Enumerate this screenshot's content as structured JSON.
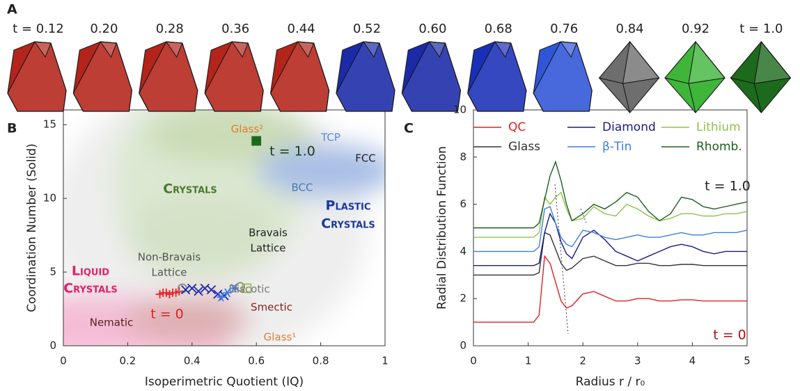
{
  "panel_a": {
    "panel": "A",
    "labels": [
      "t = 0.12",
      "0.20",
      "0.28",
      "0.36",
      "0.44",
      "0.52",
      "0.60",
      "0.68",
      "0.76",
      "0.84",
      "0.92",
      "t = 1.0"
    ],
    "colors": [
      "#b3241a",
      "#b3241a",
      "#b3241a",
      "#b3241a",
      "#b3241a",
      "#1a2aa8",
      "#1a2aa8",
      "#1a2fb8",
      "#2f55d8",
      "#6e6e6e",
      "#3fb53a",
      "#1c6a1c"
    ]
  },
  "chart_data": [
    {
      "type": "scatter",
      "panel": "B",
      "x_label": "Isoperimetric Quotient (IQ)",
      "y_label": "Coordination Number (Solid)",
      "xlim": [
        0,
        1
      ],
      "xticks": [
        0,
        0.2,
        0.4,
        0.6,
        0.8,
        1
      ],
      "ylim": [
        0,
        16
      ],
      "yticks": [
        0,
        5,
        10,
        15
      ],
      "series": [
        {
          "color": "#e82020",
          "marker": "plus",
          "x": [
            0.3,
            0.31,
            0.32,
            0.33,
            0.34,
            0.35,
            0.36
          ],
          "values": [
            3.5,
            3.6,
            3.6,
            3.5,
            3.6,
            3.6,
            3.7
          ]
        },
        {
          "color": "#888888",
          "marker": "circle",
          "x": [
            0.37,
            0.55
          ],
          "values": [
            3.9,
            4.0
          ]
        },
        {
          "color": "#1a2aa8",
          "marker": "x",
          "x": [
            0.38,
            0.4,
            0.42,
            0.44,
            0.46,
            0.48,
            0.5
          ],
          "values": [
            3.8,
            3.9,
            3.7,
            3.9,
            3.8,
            3.5,
            3.4
          ]
        },
        {
          "color": "#3f7ee0",
          "marker": "star",
          "x": [
            0.49,
            0.51,
            0.53
          ],
          "values": [
            3.3,
            3.6,
            3.9
          ]
        },
        {
          "color": "#8fc24a",
          "marker": "square",
          "x": [
            0.57
          ],
          "values": [
            3.9
          ]
        },
        {
          "color": "#1c6a1c",
          "marker": "square",
          "x": [
            0.6
          ],
          "values": [
            13.9
          ]
        }
      ],
      "annotations": [
        {
          "text": "Glass²",
          "color": "#e07b30"
        },
        {
          "text": "TCP",
          "color": "#5a8ad0"
        },
        {
          "text": "FCC",
          "color": "#222222"
        },
        {
          "text": "t = 1.0",
          "color": "#1a3a1a"
        },
        {
          "text": "Crystals",
          "color": "#4a7a30",
          "style": "smallcaps"
        },
        {
          "text": "BCC",
          "color": "#4a7ab0"
        },
        {
          "text": "Plastic",
          "color": "#1a3a9a",
          "style": "smallcaps"
        },
        {
          "text": "Crystals",
          "color": "#1a3a9a",
          "style": "smallcaps"
        },
        {
          "text": "Bravais",
          "color": "#222222"
        },
        {
          "text": "Lattice",
          "color": "#222222"
        },
        {
          "text": "Non-Bravais",
          "color": "#555555"
        },
        {
          "text": "Lattice",
          "color": "#555555"
        },
        {
          "text": "Liquid",
          "color": "#e0206a",
          "style": "smallcaps"
        },
        {
          "text": "Crystals",
          "color": "#e0206a",
          "style": "smallcaps"
        },
        {
          "text": "t = 0",
          "color": "#e02020"
        },
        {
          "text": "Discotic",
          "color": "#777777"
        },
        {
          "text": "Nematic",
          "color": "#5a2020"
        },
        {
          "text": "Smectic",
          "color": "#8a2020"
        },
        {
          "text": "Glass¹",
          "color": "#e07b30"
        }
      ]
    },
    {
      "type": "line",
      "panel": "C",
      "x_label": "Radius r / r₀",
      "y_label": "Radial Distribution Function",
      "xlim": [
        0,
        5
      ],
      "xticks": [
        0,
        1,
        2,
        3,
        4,
        5
      ],
      "ylim": [
        0,
        10
      ],
      "yticks": [
        0,
        2,
        4,
        6,
        8,
        10
      ],
      "x": [
        0,
        1,
        1.1,
        1.2,
        1.3,
        1.4,
        1.5,
        1.6,
        1.7,
        1.8,
        2.0,
        2.2,
        2.4,
        2.6,
        2.8,
        3.0,
        3.2,
        3.4,
        3.6,
        3.8,
        4.0,
        4.2,
        4.4,
        4.6,
        4.8,
        5.0
      ],
      "series": [
        {
          "name": "QC",
          "color": "#e02020",
          "values": [
            1.0,
            1.0,
            1.0,
            1.3,
            3.8,
            3.5,
            2.7,
            1.9,
            1.6,
            1.7,
            2.2,
            2.3,
            2.1,
            1.9,
            1.9,
            2.0,
            2.0,
            1.9,
            1.9,
            1.95,
            1.95,
            1.9,
            1.9,
            1.9,
            1.9,
            1.9
          ]
        },
        {
          "name": "Glass",
          "color": "#333333",
          "values": [
            3.0,
            3.0,
            3.0,
            3.1,
            4.8,
            4.7,
            4.1,
            3.5,
            3.2,
            3.3,
            3.7,
            3.8,
            3.6,
            3.4,
            3.4,
            3.5,
            3.5,
            3.4,
            3.4,
            3.45,
            3.45,
            3.4,
            3.4,
            3.4,
            3.4,
            3.4
          ]
        },
        {
          "name": "Diamond",
          "color": "#1a1a80",
          "values": [
            3.4,
            3.4,
            3.4,
            3.5,
            4.8,
            5.6,
            5.2,
            4.4,
            3.9,
            3.7,
            4.6,
            4.9,
            4.5,
            4.0,
            3.8,
            3.6,
            3.8,
            4.0,
            4.2,
            4.3,
            4.2,
            4.0,
            3.9,
            4.0,
            4.0,
            4.0
          ]
        },
        {
          "name": "β-Tin",
          "color": "#3c7de0",
          "values": [
            4.0,
            4.0,
            4.0,
            4.2,
            5.8,
            5.9,
            5.2,
            4.6,
            4.3,
            4.2,
            4.9,
            4.8,
            4.6,
            4.5,
            4.6,
            4.7,
            4.6,
            4.6,
            4.7,
            4.8,
            4.7,
            4.7,
            4.8,
            4.8,
            4.8,
            4.9
          ]
        },
        {
          "name": "Lithium",
          "color": "#8fc24a",
          "values": [
            4.6,
            4.6,
            4.6,
            4.8,
            6.3,
            6.0,
            6.3,
            6.5,
            5.8,
            5.3,
            5.4,
            5.9,
            5.6,
            5.5,
            6.0,
            5.8,
            5.5,
            5.3,
            5.4,
            5.6,
            5.6,
            5.5,
            5.5,
            5.6,
            5.6,
            5.7
          ]
        },
        {
          "name": "Rhomb.",
          "color": "#1e5e1e",
          "values": [
            5.0,
            5.0,
            5.0,
            5.2,
            6.2,
            7.2,
            7.8,
            7.0,
            6.0,
            5.3,
            5.6,
            6.0,
            5.8,
            6.1,
            6.5,
            6.3,
            5.7,
            5.3,
            5.6,
            6.3,
            6.2,
            5.9,
            5.8,
            5.9,
            6.0,
            6.1
          ]
        }
      ],
      "annotations": [
        {
          "text": "t = 1.0",
          "color": "#222222"
        },
        {
          "text": "t = 0",
          "color": "#b01010"
        }
      ]
    }
  ]
}
